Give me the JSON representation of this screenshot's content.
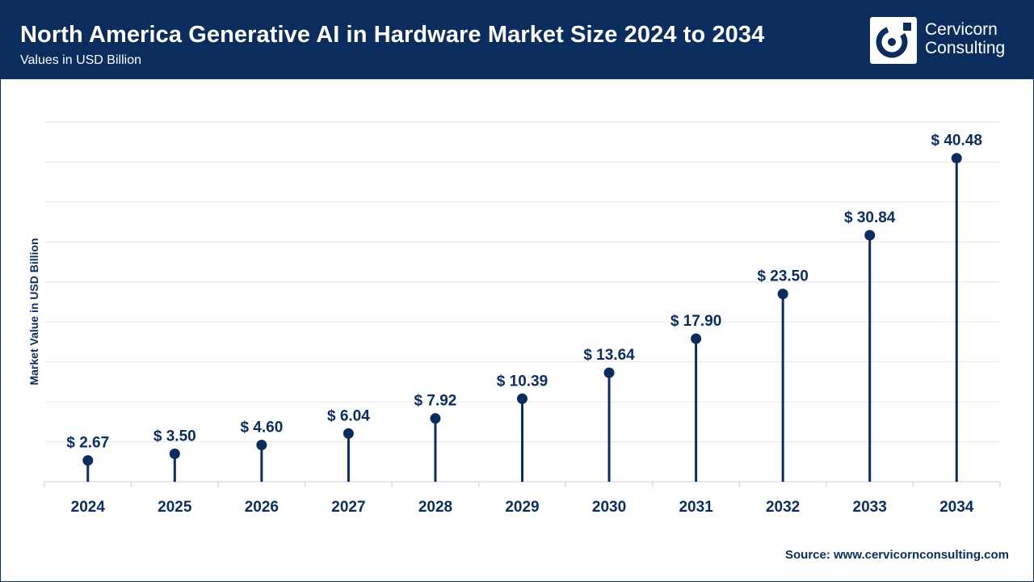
{
  "header": {
    "title": "North America Generative AI in Hardware Market Size 2024 to 2034",
    "subtitle": "Values in USD Billion",
    "logo_line1": "Cervicorn",
    "logo_line2": "Consulting"
  },
  "source": "Source: www.cervicornconsulting.com",
  "colors": {
    "primary": "#0b2d5e",
    "grid": "#e6e6e6",
    "background": "#ffffff"
  },
  "chart_data": {
    "type": "lollipop",
    "title": "North America Generative AI in Hardware Market Size 2024 to 2034",
    "subtitle": "Values in USD Billion",
    "xlabel": "",
    "ylabel": "Market Value in USD Billion",
    "ylim": [
      0,
      45
    ],
    "grid": true,
    "categories": [
      "2024",
      "2025",
      "2026",
      "2027",
      "2028",
      "2029",
      "2030",
      "2031",
      "2032",
      "2033",
      "2034"
    ],
    "values": [
      2.67,
      3.5,
      4.6,
      6.04,
      7.92,
      10.39,
      13.64,
      17.9,
      23.5,
      30.84,
      40.48
    ],
    "labels": [
      "$ 2.67",
      "$ 3.50",
      "$ 4.60",
      "$ 6.04",
      "$ 7.92",
      "$ 10.39",
      "$ 13.64",
      "$ 17.90",
      "$ 23.50",
      "$ 30.84",
      "$ 40.48"
    ]
  }
}
